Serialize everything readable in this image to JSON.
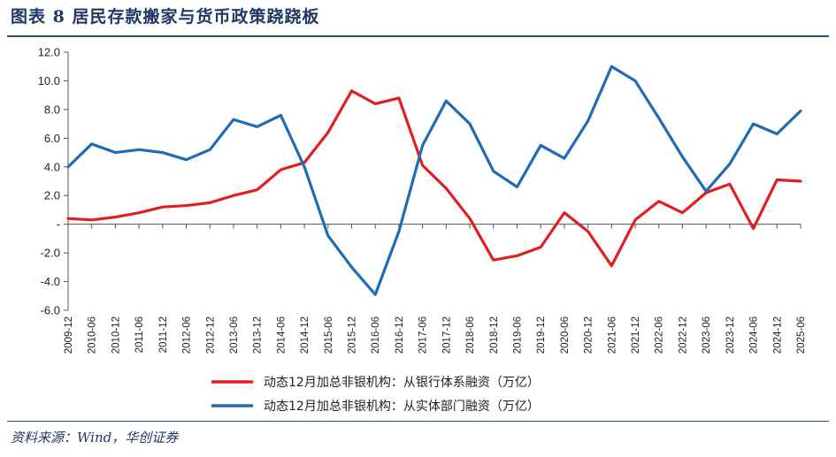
{
  "figure": {
    "title": "图表 8   居民存款搬家与货币政策跷跷板",
    "source": "资料来源：Wind，华创证券"
  },
  "chart_data": {
    "type": "line",
    "ylim": [
      -6,
      12
    ],
    "y_ticks": [
      12,
      10,
      8,
      6,
      4,
      2,
      0,
      -2,
      -4,
      -6
    ],
    "y_tick_labels": [
      "12.0",
      "10.0",
      "8.0",
      "6.0",
      "4.0",
      "2.0",
      "-",
      "-2.0",
      "-4.0",
      "-6.0"
    ],
    "x_tick_labels": [
      "2009-12",
      "2010-06",
      "2010-12",
      "2011-06",
      "2011-12",
      "2012-06",
      "2012-12",
      "2013-06",
      "2013-12",
      "2014-06",
      "2014-12",
      "2015-06",
      "2015-12",
      "2016-06",
      "2016-12",
      "2017-06",
      "2017-12",
      "2018-06",
      "2018-12",
      "2019-06",
      "2019-12",
      "2020-06",
      "2020-12",
      "2021-06",
      "2021-12",
      "2022-06",
      "2022-12",
      "2023-06",
      "2023-12",
      "2024-06",
      "2024-12",
      "2025-06"
    ],
    "legend_position": "bottom",
    "series": [
      {
        "name": "动态12月加总非银机构：从银行体系融资（万亿）",
        "color": "#e02020",
        "values": [
          0.4,
          0.3,
          0.5,
          0.8,
          1.2,
          1.3,
          1.5,
          2.0,
          2.4,
          3.8,
          4.3,
          6.4,
          9.3,
          8.4,
          8.8,
          4.1,
          2.5,
          0.4,
          -2.5,
          -2.2,
          -1.6,
          0.8,
          -0.5,
          -2.9,
          0.3,
          1.6,
          0.8,
          2.2,
          2.8,
          -0.3,
          3.1,
          3.0
        ]
      },
      {
        "name": "动态12月加总非银机构：从实体部门融资（万亿）",
        "color": "#1f6bb5",
        "values": [
          4.0,
          5.6,
          5.0,
          5.2,
          5.0,
          4.5,
          5.2,
          7.3,
          6.8,
          7.6,
          4.0,
          -0.8,
          -3.0,
          -4.9,
          -0.5,
          5.5,
          8.6,
          7.0,
          3.7,
          2.6,
          5.5,
          4.6,
          7.2,
          11.0,
          10.0,
          7.4,
          4.7,
          2.3,
          4.2,
          7.0,
          6.3,
          7.9
        ]
      }
    ]
  }
}
